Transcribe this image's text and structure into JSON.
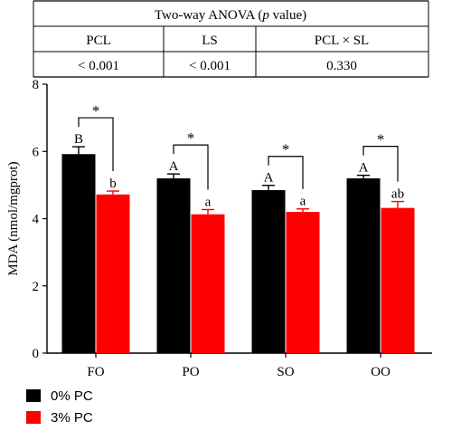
{
  "anova_table": {
    "title_prefix": "Two-way ANOVA (",
    "title_p": "p",
    "title_suffix": " value)",
    "headers": [
      "PCL",
      "LS",
      "PCL × SL"
    ],
    "values": [
      "< 0.001",
      "< 0.001",
      "0.330"
    ]
  },
  "chart_data": {
    "type": "bar",
    "categories": [
      "FO",
      "PO",
      "SO",
      "OO"
    ],
    "ylabel": "MDA (nmol/mgprot)",
    "ylim": [
      0,
      8
    ],
    "yticks": [
      "0",
      "2",
      "4",
      "6",
      "8"
    ],
    "series": [
      {
        "name": "0% PC",
        "color": "#000000",
        "values": [
          5.92,
          5.2,
          4.85,
          5.2
        ],
        "errors": [
          0.22,
          0.13,
          0.14,
          0.09
        ],
        "letters": [
          "B",
          "A",
          "A",
          "A"
        ]
      },
      {
        "name": "3% PC",
        "color": "#ff0000",
        "values": [
          4.72,
          4.13,
          4.2,
          4.32
        ],
        "errors": [
          0.1,
          0.14,
          0.09,
          0.19
        ],
        "letters": [
          "b",
          "a",
          "a",
          "ab"
        ]
      }
    ],
    "significance_marker": "*",
    "legend_position": "bottom-left"
  }
}
